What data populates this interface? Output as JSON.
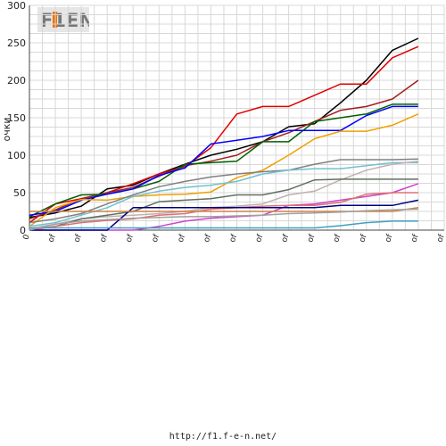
{
  "logo_text": "F1EN",
  "footer_url": "http://f1.f-e-n.net/",
  "chart_data": {
    "type": "line",
    "title": "",
    "xlabel": "",
    "ylabel": "очки",
    "ylim": [
      0,
      300
    ],
    "yticks": [
      0,
      50,
      100,
      150,
      200,
      250,
      300
    ],
    "grid": true,
    "x_tick_labels": [
      "0",
      "of",
      "of",
      "of",
      "of",
      "of",
      "of",
      "of",
      "of",
      "of",
      "of",
      "of",
      "of",
      "of",
      "of",
      "of",
      "of"
    ],
    "series": [
      {
        "color": "#000000",
        "values": [
          17,
          23,
          32,
          55,
          60,
          75,
          88,
          100,
          108,
          118,
          138,
          142,
          170,
          200,
          240,
          256
        ]
      },
      {
        "color": "#e00000",
        "values": [
          10,
          35,
          42,
          50,
          62,
          75,
          85,
          110,
          155,
          165,
          165,
          180,
          195,
          195,
          230,
          245
        ]
      },
      {
        "color": "#a02020",
        "values": [
          15,
          27,
          42,
          50,
          57,
          72,
          86,
          92,
          100,
          118,
          130,
          145,
          160,
          165,
          175,
          200
        ]
      },
      {
        "color": "#006000",
        "values": [
          18,
          35,
          47,
          48,
          55,
          65,
          88,
          90,
          92,
          118,
          118,
          145,
          150,
          155,
          168,
          168
        ]
      },
      {
        "color": "#0000ff",
        "values": [
          20,
          25,
          40,
          48,
          55,
          73,
          83,
          115,
          120,
          125,
          133,
          133,
          133,
          153,
          165,
          165
        ]
      },
      {
        "color": "#f0a000",
        "values": [
          5,
          30,
          41,
          40,
          45,
          47,
          48,
          51,
          70,
          80,
          100,
          122,
          132,
          132,
          140,
          155
        ]
      },
      {
        "color": "#808080",
        "values": [
          10,
          15,
          22,
          35,
          47,
          58,
          65,
          71,
          75,
          78,
          80,
          88,
          94,
          94,
          94,
          95
        ]
      },
      {
        "color": "#70c0d0",
        "values": [
          5,
          10,
          20,
          30,
          45,
          52,
          57,
          60,
          65,
          75,
          80,
          82,
          82,
          86,
          90,
          90
        ]
      },
      {
        "color": "#c0b0b0",
        "values": [
          2,
          8,
          15,
          18,
          20,
          22,
          25,
          30,
          32,
          35,
          47,
          52,
          67,
          80,
          88,
          92
        ]
      },
      {
        "color": "#607060",
        "values": [
          0,
          5,
          15,
          20,
          25,
          38,
          40,
          42,
          47,
          47,
          54,
          67,
          68,
          68,
          68,
          68
        ]
      },
      {
        "color": "#cc44cc",
        "values": [
          0,
          0,
          0,
          0,
          0,
          5,
          12,
          16,
          18,
          20,
          33,
          35,
          40,
          45,
          50,
          62
        ]
      },
      {
        "color": "#e07070",
        "values": [
          0,
          5,
          10,
          13,
          15,
          20,
          22,
          28,
          30,
          32,
          33,
          33,
          37,
          48,
          50,
          50
        ]
      },
      {
        "color": "#000080",
        "values": [
          0,
          0,
          0,
          0,
          30,
          30,
          30,
          30,
          30,
          30,
          30,
          30,
          33,
          33,
          33,
          40
        ]
      },
      {
        "color": "#d08040",
        "values": [
          25,
          25,
          25,
          25,
          25,
          25,
          25,
          25,
          25,
          25,
          25,
          25,
          25,
          25,
          25,
          30
        ]
      },
      {
        "color": "#40a0c0",
        "values": [
          3,
          3,
          3,
          3,
          3,
          3,
          3,
          3,
          3,
          3,
          3,
          3,
          6,
          10,
          12,
          12
        ]
      },
      {
        "color": "#a0a0a0",
        "values": [
          0,
          8,
          12,
          14,
          16,
          17,
          18,
          18,
          19,
          20,
          22,
          23,
          24,
          26,
          27,
          28
        ]
      }
    ]
  }
}
